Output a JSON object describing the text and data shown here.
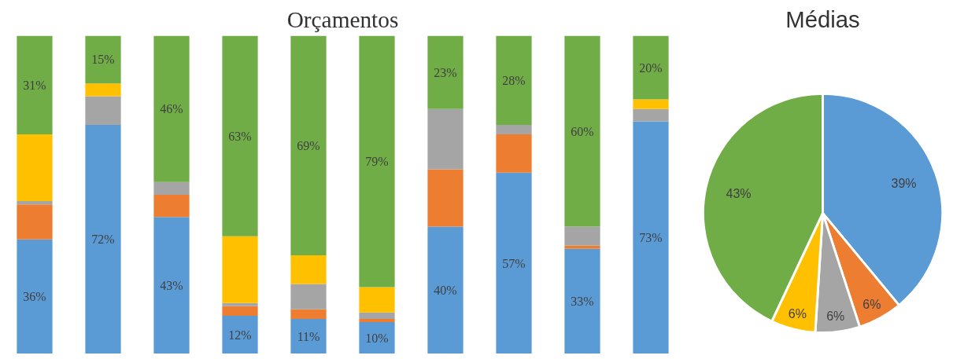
{
  "chart_data": [
    {
      "type": "bar",
      "title": "Orçamentos",
      "stacked": true,
      "ylim": [
        0,
        100
      ],
      "tick_labels": false,
      "categories": [
        null,
        null,
        null,
        null,
        null,
        null,
        null,
        null,
        null,
        null
      ],
      "series": [
        {
          "color": "#5b9bd5",
          "values": [
            36,
            72,
            43,
            12,
            11,
            10,
            40,
            57,
            33,
            73
          ],
          "value_labels": [
            "36%",
            "72%",
            "43%",
            "12%",
            "11%",
            "10%",
            "40%",
            "57%",
            "33%",
            "73%"
          ]
        },
        {
          "color": "#ed7d31",
          "values": [
            11,
            0,
            7,
            3,
            3,
            1,
            18,
            12,
            1,
            0
          ]
        },
        {
          "color": "#a5a5a5",
          "values": [
            1,
            9,
            4,
            1,
            8,
            2,
            19,
            3,
            6,
            4
          ]
        },
        {
          "color": "#ffc000",
          "values": [
            21,
            4,
            0,
            21,
            9,
            8,
            0,
            0,
            0,
            3
          ]
        },
        {
          "color": "#70ad47",
          "values": [
            31,
            15,
            46,
            63,
            69,
            79,
            23,
            28,
            60,
            20
          ],
          "value_labels": [
            "31%",
            "15%",
            "46%",
            "63%",
            "69%",
            "79%",
            "23%",
            "28%",
            "60%",
            "20%"
          ]
        }
      ]
    },
    {
      "type": "pie",
      "title": "Médias",
      "categories": [
        null,
        null,
        null,
        null,
        null
      ],
      "values": [
        39,
        6,
        6,
        6,
        43
      ],
      "colors": [
        "#5b9bd5",
        "#ed7d31",
        "#a5a5a5",
        "#ffc000",
        "#70ad47"
      ],
      "value_labels": [
        "39%",
        "6%",
        "6%",
        "6%",
        "43%"
      ]
    }
  ]
}
